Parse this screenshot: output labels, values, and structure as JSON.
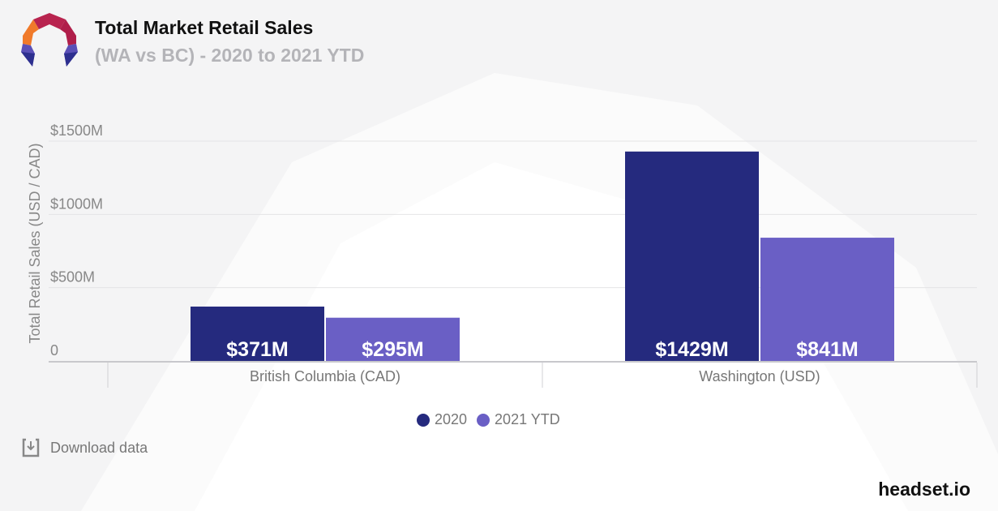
{
  "header": {
    "title": "Total Market Retail Sales",
    "subtitle": "(WA vs BC) - 2020 to 2021 YTD"
  },
  "chart_data": {
    "type": "bar",
    "categories": [
      "British Columbia (CAD)",
      "Washington (USD)"
    ],
    "series": [
      {
        "name": "2020",
        "color": "#252a7e",
        "values": [
          371,
          1429
        ],
        "labels": [
          "$371M",
          "$1429M"
        ]
      },
      {
        "name": "2021 YTD",
        "color": "#6a5fc5",
        "values": [
          295,
          841
        ],
        "labels": [
          "$295M",
          "$841M"
        ]
      }
    ],
    "ylabel": "Total Retail Sales (USD / CAD)",
    "ylim": [
      0,
      1500
    ],
    "yticks": [
      {
        "value": 0,
        "label": "0"
      },
      {
        "value": 500,
        "label": "$500M"
      },
      {
        "value": 1000,
        "label": "$1000M"
      },
      {
        "value": 1500,
        "label": "$1500M"
      }
    ],
    "grid": true,
    "legend": "bottom-center"
  },
  "download": {
    "label": "Download data",
    "icon": "download-icon"
  },
  "brand": "headset.io"
}
